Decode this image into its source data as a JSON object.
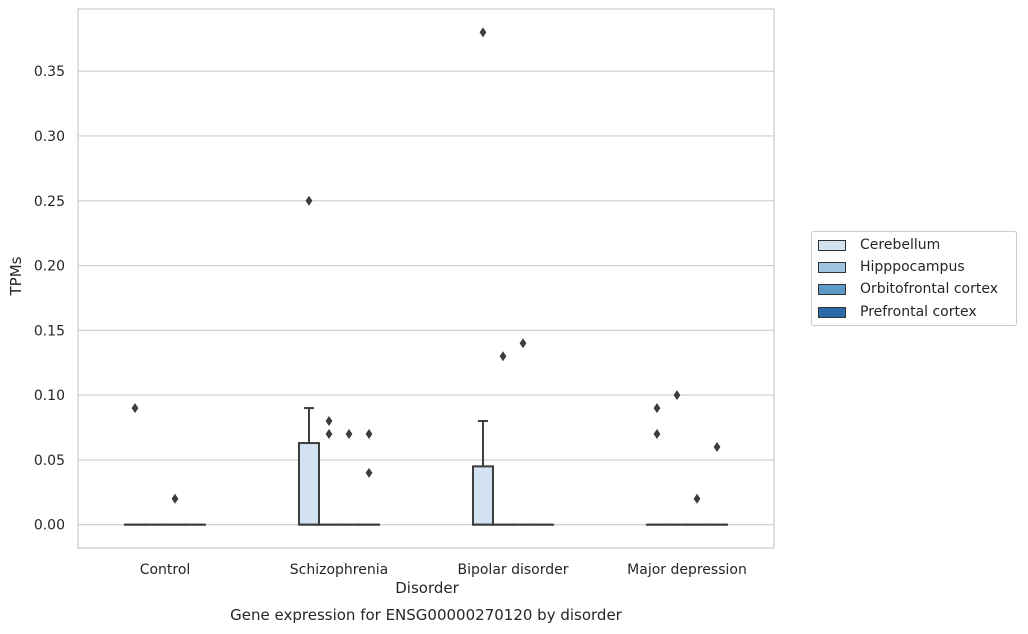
{
  "chart_data": {
    "type": "boxplot",
    "xlabel": "Disorder",
    "ylabel": "TPMs",
    "caption": "Gene expression for ENSG00000270120 by disorder",
    "categories": [
      "Control",
      "Schizophrenia",
      "Bipolar disorder",
      "Major depression"
    ],
    "ylim": [
      -0.018,
      0.398
    ],
    "yticks": [
      0.0,
      0.05,
      0.1,
      0.15,
      0.2,
      0.25,
      0.3,
      0.35
    ],
    "ytick_labels": [
      "0.00",
      "0.05",
      "0.10",
      "0.15",
      "0.20",
      "0.25",
      "0.30",
      "0.35"
    ],
    "grid": "horizontal",
    "legend_position": "right",
    "series": [
      {
        "name": "Cerebellum",
        "color": "#d3e2f0",
        "boxes": [
          {
            "q1": 0.0,
            "median": 0.0,
            "q3": 0.0,
            "whisker_low": 0.0,
            "whisker_high": 0.0,
            "outliers": [
              0.09
            ]
          },
          {
            "q1": 0.0,
            "median": 0.0,
            "q3": 0.063,
            "whisker_low": 0.0,
            "whisker_high": 0.09,
            "outliers": [
              0.25
            ]
          },
          {
            "q1": 0.0,
            "median": 0.0,
            "q3": 0.045,
            "whisker_low": 0.0,
            "whisker_high": 0.08,
            "outliers": [
              0.38
            ]
          },
          {
            "q1": 0.0,
            "median": 0.0,
            "q3": 0.0,
            "whisker_low": 0.0,
            "whisker_high": 0.0,
            "outliers": [
              0.09,
              0.07
            ]
          }
        ]
      },
      {
        "name": "Hipppocampus",
        "color": "#9ec3de",
        "boxes": [
          {
            "q1": 0.0,
            "median": 0.0,
            "q3": 0.0,
            "whisker_low": 0.0,
            "whisker_high": 0.0,
            "outliers": []
          },
          {
            "q1": 0.0,
            "median": 0.0,
            "q3": 0.0,
            "whisker_low": 0.0,
            "whisker_high": 0.0,
            "outliers": [
              0.08,
              0.07
            ]
          },
          {
            "q1": 0.0,
            "median": 0.0,
            "q3": 0.0,
            "whisker_low": 0.0,
            "whisker_high": 0.0,
            "outliers": [
              0.13
            ]
          },
          {
            "q1": 0.0,
            "median": 0.0,
            "q3": 0.0,
            "whisker_low": 0.0,
            "whisker_high": 0.0,
            "outliers": [
              0.1
            ]
          }
        ]
      },
      {
        "name": "Orbitofrontal cortex",
        "color": "#5c9bc8",
        "boxes": [
          {
            "q1": 0.0,
            "median": 0.0,
            "q3": 0.0,
            "whisker_low": 0.0,
            "whisker_high": 0.0,
            "outliers": [
              0.02
            ]
          },
          {
            "q1": 0.0,
            "median": 0.0,
            "q3": 0.0,
            "whisker_low": 0.0,
            "whisker_high": 0.0,
            "outliers": [
              0.07
            ]
          },
          {
            "q1": 0.0,
            "median": 0.0,
            "q3": 0.0,
            "whisker_low": 0.0,
            "whisker_high": 0.0,
            "outliers": [
              0.14
            ]
          },
          {
            "q1": 0.0,
            "median": 0.0,
            "q3": 0.0,
            "whisker_low": 0.0,
            "whisker_high": 0.0,
            "outliers": [
              0.02
            ]
          }
        ]
      },
      {
        "name": "Prefrontal cortex",
        "color": "#2a6aaa",
        "boxes": [
          {
            "q1": 0.0,
            "median": 0.0,
            "q3": 0.0,
            "whisker_low": 0.0,
            "whisker_high": 0.0,
            "outliers": []
          },
          {
            "q1": 0.0,
            "median": 0.0,
            "q3": 0.0,
            "whisker_low": 0.0,
            "whisker_high": 0.0,
            "outliers": [
              0.07,
              0.04
            ]
          },
          {
            "q1": 0.0,
            "median": 0.0,
            "q3": 0.0,
            "whisker_low": 0.0,
            "whisker_high": 0.0,
            "outliers": []
          },
          {
            "q1": 0.0,
            "median": 0.0,
            "q3": 0.0,
            "whisker_low": 0.0,
            "whisker_high": 0.0,
            "outliers": [
              0.06
            ]
          }
        ]
      }
    ]
  }
}
